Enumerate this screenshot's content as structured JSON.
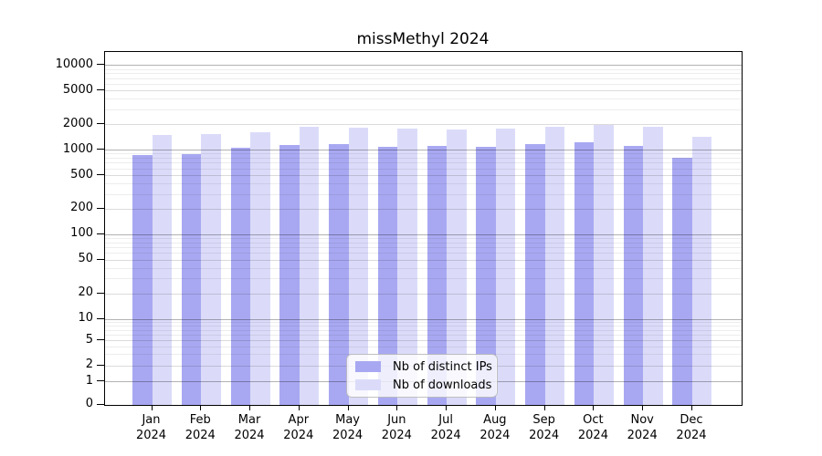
{
  "title": "missMethyl 2024",
  "chart_data": {
    "type": "bar",
    "categories": [
      "Jan",
      "Feb",
      "Mar",
      "Apr",
      "May",
      "Jun",
      "Jul",
      "Aug",
      "Sep",
      "Oct",
      "Nov",
      "Dec"
    ],
    "year": "2024",
    "series": [
      {
        "name": "Nb of distinct IPs",
        "color": "#a8a8f2",
        "values": [
          880,
          905,
          1070,
          1160,
          1185,
          1100,
          1110,
          1085,
          1170,
          1240,
          1120,
          805
        ]
      },
      {
        "name": "Nb of downloads",
        "color": "#dbdbf9",
        "values": [
          1520,
          1560,
          1630,
          1870,
          1830,
          1810,
          1750,
          1800,
          1900,
          1985,
          1905,
          1430
        ]
      }
    ],
    "yscale": "log",
    "ylim": [
      0,
      14500
    ],
    "ytick_labels": [
      "10000",
      "5000",
      "2000",
      "1000",
      "500",
      "200",
      "100",
      "50",
      "20",
      "10",
      "5",
      "2",
      "1",
      "0"
    ],
    "grid": true,
    "legend_position": "lower center"
  },
  "colors": {
    "background": "#ffffff",
    "axis": "#000000",
    "bar_ips": "#a8a8f2",
    "bar_downloads": "#dbdbf9"
  }
}
